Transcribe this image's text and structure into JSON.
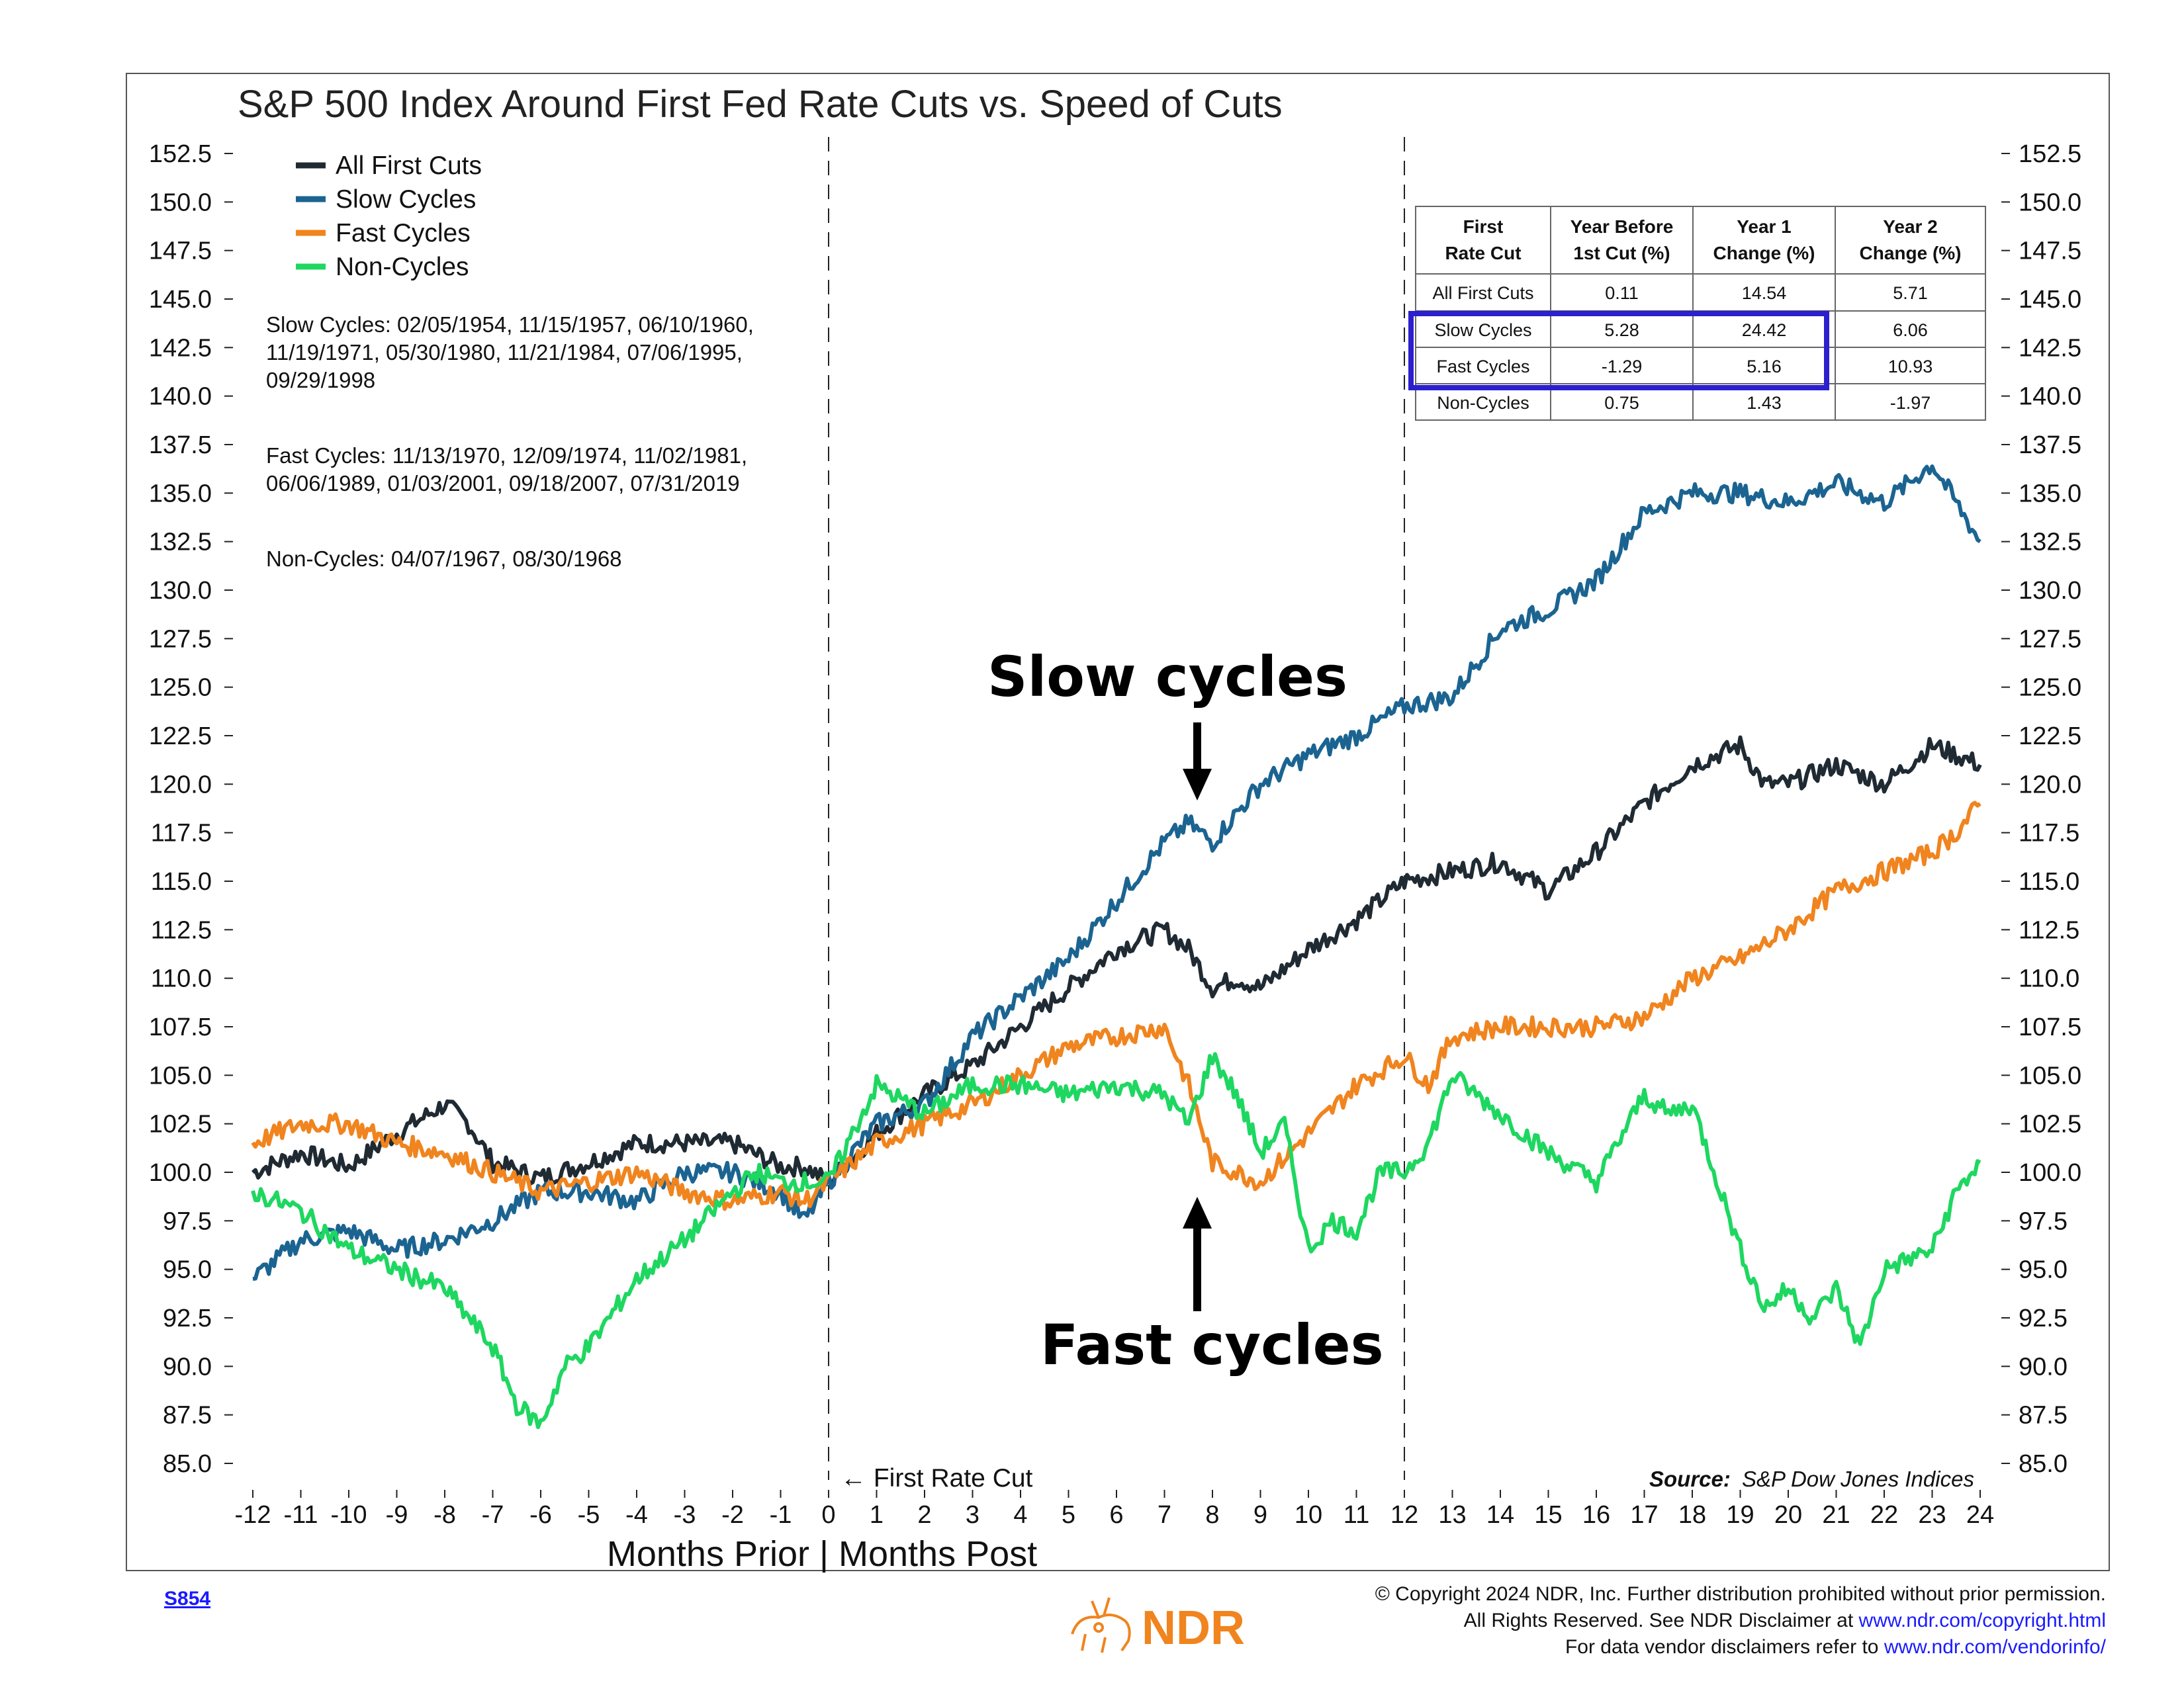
{
  "chart_data": {
    "type": "line",
    "title": "S&P 500 Index Around First Fed Rate Cuts vs. Speed of Cuts",
    "xlabel": "Months Prior | Months Post",
    "ylabel": "",
    "x_ticks": [
      "-12",
      "-11",
      "-10",
      "-9",
      "-8",
      "-7",
      "-6",
      "-5",
      "-4",
      "-3",
      "-2",
      "-1",
      "0",
      "1",
      "2",
      "3",
      "4",
      "5",
      "6",
      "7",
      "8",
      "9",
      "10",
      "11",
      "12",
      "13",
      "14",
      "15",
      "16",
      "17",
      "18",
      "19",
      "20",
      "21",
      "22",
      "23",
      "24"
    ],
    "y_ticks": [
      "85.0",
      "87.5",
      "90.0",
      "92.5",
      "95.0",
      "97.5",
      "100.0",
      "102.5",
      "105.0",
      "107.5",
      "110.0",
      "112.5",
      "115.0",
      "117.5",
      "120.0",
      "122.5",
      "125.0",
      "127.5",
      "130.0",
      "132.5",
      "135.0",
      "137.5",
      "140.0",
      "142.5",
      "145.0",
      "147.5",
      "150.0",
      "152.5"
    ],
    "xlim": [
      -12,
      24
    ],
    "ylim": [
      85,
      152.5
    ],
    "vlines": [
      0,
      12
    ],
    "series": [
      {
        "name": "All First Cuts",
        "color": "#1f2a33",
        "x": [
          -12,
          -11,
          -10,
          -9,
          -8,
          -7.5,
          -7,
          -6,
          -5,
          -4,
          -3,
          -2,
          -1,
          -0.5,
          0,
          1,
          2,
          3,
          4,
          5,
          6,
          7,
          7.5,
          8,
          8.5,
          9,
          10,
          11,
          12,
          13,
          14,
          15,
          16,
          17,
          18,
          19,
          19.5,
          20,
          21,
          22,
          23,
          23.5,
          24
        ],
        "y": [
          100,
          101,
          100.3,
          102,
          103.5,
          102.5,
          100.5,
          99.7,
          100.5,
          101.5,
          101.5,
          101.5,
          100.3,
          100.3,
          99.5,
          102,
          104,
          105.5,
          107.5,
          109.5,
          111.5,
          112.5,
          111.5,
          109.5,
          110,
          109.5,
          111.5,
          113,
          115,
          115.5,
          116,
          114.5,
          116.5,
          119,
          121,
          122,
          120,
          120,
          121,
          120,
          122,
          121.5,
          121
        ]
      },
      {
        "name": "Slow Cycles",
        "color": "#1b6491",
        "x": [
          -12,
          -11,
          -10,
          -9,
          -8,
          -7,
          -6,
          -5,
          -4,
          -3,
          -2,
          -1,
          -0.5,
          0,
          1,
          2,
          3,
          4,
          5,
          6,
          7,
          7.5,
          8,
          9,
          10,
          11,
          12,
          13,
          14,
          15,
          16,
          17,
          18,
          19,
          20,
          21,
          22,
          23,
          23.5,
          24
        ],
        "y": [
          94.5,
          96.5,
          97,
          96,
          96.5,
          97.5,
          99,
          99,
          98.5,
          100,
          100,
          99,
          97.5,
          99.5,
          102.5,
          103.5,
          107,
          109,
          111,
          114,
          117,
          118,
          117,
          120,
          121.5,
          122.5,
          124,
          124.5,
          128,
          129,
          130.5,
          134,
          135,
          135,
          134.5,
          135.5,
          134.5,
          136.5,
          134.5,
          132.5
        ]
      },
      {
        "name": "Fast Cycles",
        "color": "#f0841e",
        "x": [
          -12,
          -11,
          -10,
          -9,
          -8,
          -7,
          -6,
          -5,
          -4,
          -3,
          -2,
          -1,
          -0.5,
          0,
          1,
          2,
          3,
          4,
          5,
          6,
          7,
          7.5,
          8,
          9,
          10,
          11,
          12,
          12.5,
          13,
          14,
          15,
          16,
          17,
          18,
          19,
          20,
          21,
          22,
          23,
          23.5,
          24
        ],
        "y": [
          101.5,
          102.5,
          102.5,
          101.5,
          101,
          100,
          99,
          99.5,
          100,
          99,
          98.5,
          99,
          98.5,
          99.5,
          101.5,
          102.5,
          103.5,
          105,
          106.5,
          107,
          107.5,
          104.5,
          100.5,
          99.5,
          102,
          104.5,
          106,
          104.5,
          107,
          107.5,
          107.5,
          107.5,
          108,
          110,
          111,
          112.5,
          114.5,
          115.5,
          116.5,
          117.5,
          119
        ]
      },
      {
        "name": "Non-Cycles",
        "color": "#1ed760",
        "x": [
          -12,
          -11,
          -10,
          -9,
          -8,
          -7,
          -6.5,
          -6,
          -5.5,
          -5,
          -4,
          -3,
          -2,
          -1.5,
          -1,
          0,
          1,
          2,
          3,
          4,
          5,
          6,
          7,
          7.5,
          8,
          8.5,
          9,
          9.5,
          10,
          10.5,
          11,
          11.5,
          12,
          12.5,
          13,
          14,
          15,
          16,
          17,
          17.5,
          18,
          19,
          19.5,
          20,
          20.5,
          21,
          21.5,
          22,
          23,
          23.5,
          24
        ],
        "y": [
          99,
          98,
          96,
          95,
          94,
          91,
          88,
          87,
          90,
          91,
          94.5,
          96.5,
          99,
          100,
          99.5,
          99.5,
          104.5,
          103,
          104.5,
          104.5,
          104,
          104.5,
          104,
          102.5,
          106,
          104,
          101,
          102.5,
          96,
          97.5,
          97,
          100,
          100,
          101.5,
          105,
          103,
          101,
          99.5,
          104,
          103,
          103.5,
          96,
          93,
          94,
          92.5,
          94,
          91,
          95,
          96,
          99,
          100.5
        ]
      }
    ],
    "legend": [
      "All First Cuts",
      "Slow Cycles",
      "Fast Cycles",
      "Non-Cycles"
    ],
    "legend_position": "top-left",
    "annotations": {
      "first_cut": "← First Rate Cut",
      "slow": "Slow cycles",
      "fast": "Fast cycles",
      "source_label": "Source:",
      "source_text": "S&P Dow Jones Indices"
    },
    "notes": [
      "Slow Cycles: 02/05/1954, 11/15/1957, 06/10/1960,",
      "11/19/1971, 05/30/1980, 11/21/1984, 07/06/1995,",
      "09/29/1998",
      "Fast Cycles: 11/13/1970, 12/09/1974, 11/02/1981,",
      "06/06/1989, 01/03/2001, 09/18/2007, 07/31/2019",
      "Non-Cycles: 04/07/1967, 08/30/1968"
    ],
    "table": {
      "headers": [
        [
          "First",
          "Rate Cut"
        ],
        [
          "Year Before",
          "1st Cut (%)"
        ],
        [
          "Year 1",
          "Change (%)"
        ],
        [
          "Year 2",
          "Change (%)"
        ]
      ],
      "rows": [
        [
          "All First Cuts",
          "0.11",
          "14.54",
          "5.71"
        ],
        [
          "Slow Cycles",
          "5.28",
          "24.42",
          "6.06"
        ],
        [
          "Fast Cycles",
          "-1.29",
          "5.16",
          "10.93"
        ],
        [
          "Non-Cycles",
          "0.75",
          "1.43",
          "-1.97"
        ]
      ],
      "highlight_color": "#2b1fcf"
    }
  },
  "footer": {
    "chart_id": "S854",
    "logo_text": "NDR",
    "lines": [
      "© Copyright 2024 NDR, Inc. Further distribution prohibited without prior permission.",
      "All Rights Reserved. See NDR Disclaimer at ",
      "www.ndr.com/copyright.html",
      "For data vendor disclaimers refer to ",
      "www.ndr.com/vendorinfo/"
    ]
  },
  "colors": {
    "logo": "#f0841e",
    "link": "#1a1aff"
  }
}
